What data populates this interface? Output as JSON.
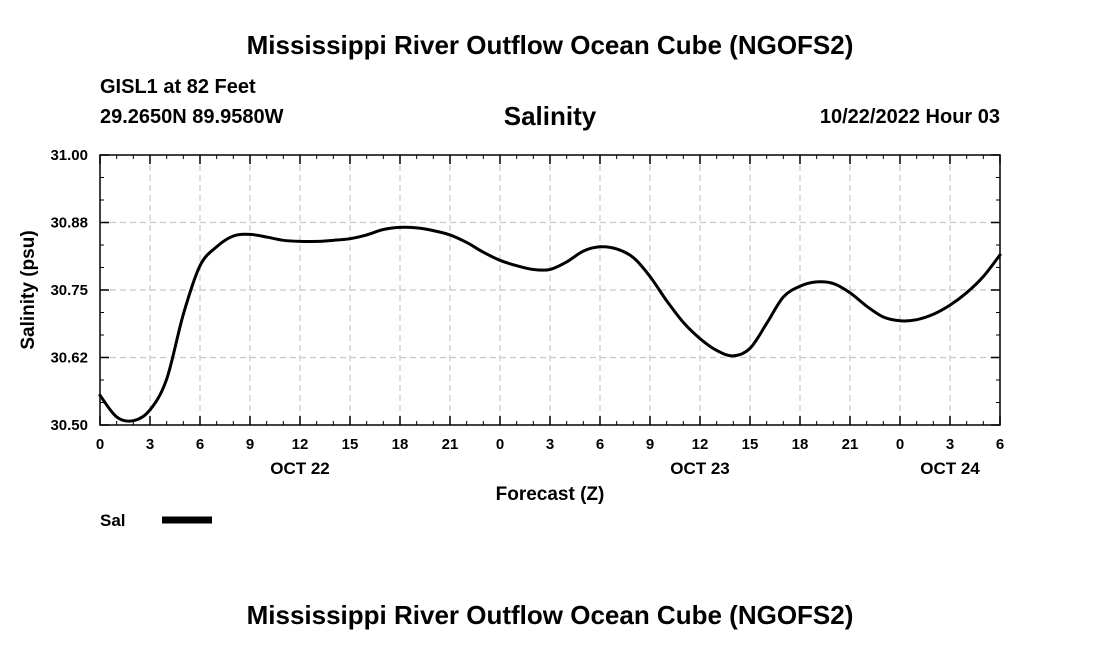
{
  "header": {
    "main_title": "Mississippi River Outflow Ocean Cube (NGOFS2)",
    "station_name": "GISL1 at 82 Feet",
    "station_coords": "29.2650N  89.9580W",
    "chart_title": "Salinity",
    "run_time": "10/22/2022 Hour 03"
  },
  "footer": {
    "title": "Mississippi River Outflow Ocean Cube (NGOFS2)"
  },
  "chart_data": {
    "type": "line",
    "xlabel": "Forecast (Z)",
    "ylabel": "Salinity (psu)",
    "ylim": [
      30.5,
      31.0
    ],
    "xlim": [
      0,
      54
    ],
    "yticks": [
      "30.50",
      "30.62",
      "30.75",
      "30.88",
      "31.00"
    ],
    "ytick_values": [
      30.5,
      30.625,
      30.75,
      30.875,
      31.0
    ],
    "xticks": [
      "0",
      "3",
      "6",
      "9",
      "12",
      "15",
      "18",
      "21",
      "0",
      "3",
      "6",
      "9",
      "12",
      "15",
      "18",
      "21",
      "0",
      "3",
      "6"
    ],
    "day_labels": [
      {
        "label": "OCT 22",
        "hour": 12
      },
      {
        "label": "OCT 23",
        "hour": 36
      },
      {
        "label": "OCT 24",
        "hour": 51
      }
    ],
    "grid": true,
    "series": [
      {
        "name": "Sal",
        "color": "#000000",
        "x": [
          0,
          1,
          2,
          3,
          4,
          5,
          6,
          7,
          8,
          9,
          10,
          11,
          12,
          13,
          14,
          15,
          16,
          17,
          18,
          19,
          20,
          21,
          22,
          23,
          24,
          25,
          26,
          27,
          28,
          29,
          30,
          31,
          32,
          33,
          34,
          35,
          36,
          37,
          38,
          39,
          40,
          41,
          42,
          43,
          44,
          45,
          46,
          47,
          48,
          49,
          50,
          51,
          52,
          53,
          54
        ],
        "y": [
          30.555,
          30.515,
          30.508,
          30.528,
          30.585,
          30.705,
          30.795,
          30.83,
          30.85,
          30.853,
          30.848,
          30.842,
          30.84,
          30.84,
          30.842,
          30.845,
          30.852,
          30.862,
          30.866,
          30.865,
          30.86,
          30.852,
          30.838,
          30.82,
          30.805,
          30.795,
          30.788,
          30.788,
          30.802,
          30.822,
          30.83,
          30.826,
          30.81,
          30.775,
          30.73,
          30.69,
          30.66,
          30.638,
          30.628,
          30.642,
          30.688,
          30.737,
          30.757,
          30.765,
          30.762,
          30.745,
          30.72,
          30.7,
          30.693,
          30.695,
          30.705,
          30.722,
          30.745,
          30.775,
          30.815
        ]
      }
    ],
    "legend": {
      "position": "bottom-left",
      "label": "Sal"
    }
  }
}
